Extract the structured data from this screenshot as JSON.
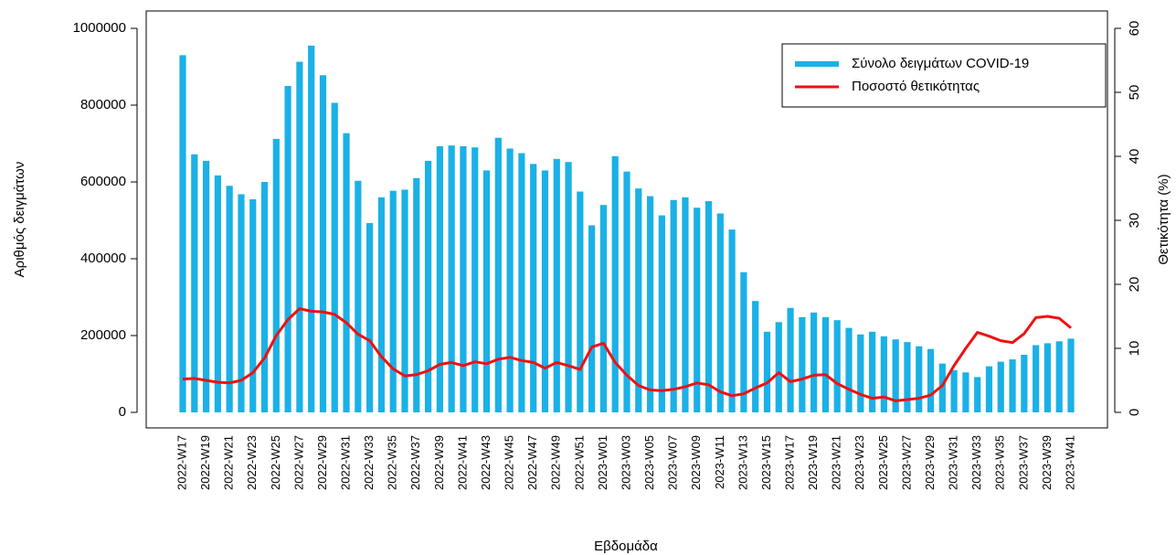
{
  "chart_data": {
    "type": "bar",
    "x_label": "Εβδομάδα",
    "y_label": "Αριθμός δειγμάτων",
    "y2_label": "Θετικότητα (%)",
    "categories": [
      "2022-W17",
      null,
      "2022-W19",
      null,
      "2022-W21",
      null,
      "2022-W23",
      null,
      "2022-W25",
      null,
      "2022-W27",
      null,
      "2022-W29",
      null,
      "2022-W31",
      null,
      "2022-W33",
      null,
      "2022-W35",
      null,
      "2022-W37",
      null,
      "2022-W39",
      null,
      "2022-W41",
      null,
      "2022-W43",
      null,
      "2022-W45",
      null,
      "2022-W47",
      null,
      "2022-W49",
      null,
      "2022-W51",
      null,
      "2023-W01",
      null,
      "2023-W03",
      null,
      "2023-W05",
      null,
      "2023-W07",
      null,
      "2023-W09",
      null,
      "2023-W11",
      null,
      "2023-W13",
      null,
      "2023-W15",
      null,
      "2023-W17",
      null,
      "2023-W19",
      null,
      "2023-W21",
      null,
      "2023-W23",
      null,
      "2023-W25",
      null,
      "2023-W27",
      null,
      "2023-W29",
      null,
      "2023-W31",
      null,
      "2023-W33",
      null,
      "2023-W35",
      null,
      "2023-W37",
      null,
      "2023-W39",
      null,
      "2023-W41"
    ],
    "series": [
      {
        "name": "Σύνολο δειγμάτων COVID-19",
        "type": "bar",
        "color": "#1ab1e6",
        "values": [
          930000,
          672000,
          655000,
          617000,
          590000,
          568000,
          555000,
          600000,
          712000,
          850000,
          913000,
          955000,
          878000,
          806000,
          727000,
          603000,
          493000,
          560000,
          577000,
          580000,
          610000,
          655000,
          693000,
          695000,
          693000,
          690000,
          630000,
          715000,
          687000,
          675000,
          647000,
          630000,
          660000,
          652000,
          575000,
          487000,
          540000,
          667000,
          627000,
          583000,
          563000,
          513000,
          553000,
          560000,
          533000,
          550000,
          518000,
          476000,
          365000,
          290000,
          210000,
          235000,
          272000,
          248000,
          260000,
          248000,
          240000,
          220000,
          203000,
          210000,
          198000,
          190000,
          183000,
          172000,
          165000,
          127000,
          110000,
          104000,
          92000,
          120000,
          132000,
          138000,
          150000,
          175000,
          180000,
          185000,
          192000
        ]
      },
      {
        "name": "Ποσοστό θετικότητας",
        "type": "line",
        "axis": "y2",
        "color": "#ee1111",
        "values": [
          5.2,
          5.3,
          5.0,
          4.7,
          4.6,
          5.0,
          6.2,
          8.5,
          12,
          14.5,
          16.2,
          15.8,
          15.7,
          15.3,
          14.0,
          12.2,
          11.2,
          8.7,
          6.8,
          5.7,
          5.9,
          6.5,
          7.5,
          7.8,
          7.3,
          7.9,
          7.6,
          8.3,
          8.6,
          8.1,
          7.8,
          6.9,
          7.8,
          7.3,
          6.7,
          10.2,
          10.8,
          7.8,
          5.8,
          4.2,
          3.5,
          3.4,
          3.6,
          4.0,
          4.6,
          4.3,
          3.2,
          2.6,
          2.9,
          3.8,
          4.6,
          6.2,
          4.8,
          5.2,
          5.8,
          5.9,
          4.5,
          3.6,
          2.8,
          2.2,
          2.4,
          1.8,
          2.0,
          2.2,
          2.7,
          4.2,
          7.3,
          10.0,
          12.5,
          11.9,
          11.2,
          10.9,
          12.3,
          14.8,
          15.0,
          14.7,
          13.2
        ]
      }
    ],
    "ylim": [
      0,
      1000000
    ],
    "yticks": [
      0,
      200000,
      400000,
      600000,
      800000,
      1000000
    ],
    "y2lim": [
      0,
      60
    ],
    "y2ticks": [
      0,
      10,
      20,
      30,
      40,
      50,
      60
    ],
    "legend": "top-right"
  }
}
